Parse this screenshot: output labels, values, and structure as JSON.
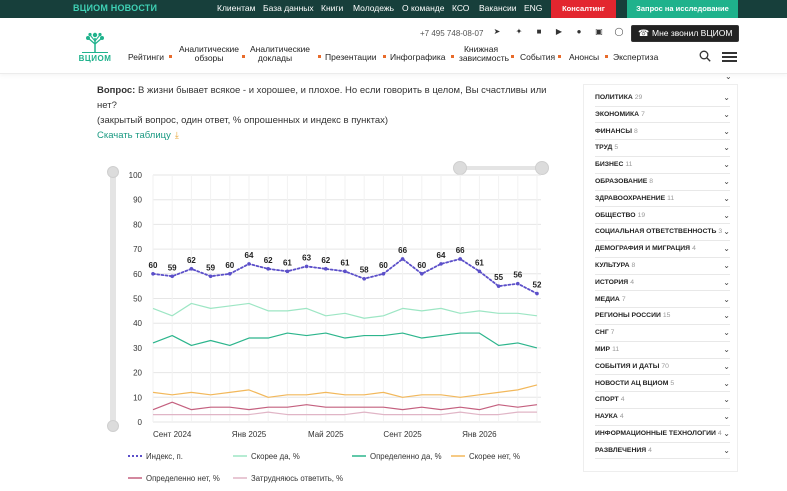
{
  "topbar": {
    "brand": "ВЦИОМ НОВОСТИ",
    "links": [
      "Клиентам",
      "База данных",
      "Книги",
      "Молодежь",
      "О команде",
      "КСО",
      "Вакансии",
      "ENG"
    ],
    "consulting": "Консалтинг",
    "request": "Запрос на исследование"
  },
  "header": {
    "logo_text": "ВЦИОМ",
    "phone": "+7 495 748-08-07",
    "callme": "Мне звонил ВЦИОМ",
    "nav": [
      {
        "label": "Рейтинги"
      },
      {
        "label": "Аналитические обзоры"
      },
      {
        "label": "Аналитические доклады"
      },
      {
        "label": "Презентации"
      },
      {
        "label": "Инфографика"
      },
      {
        "label": "Книжная зависимость"
      },
      {
        "label": "События"
      },
      {
        "label": "Анонсы"
      },
      {
        "label": "Экспертиза"
      }
    ]
  },
  "question": {
    "label": "Вопрос:",
    "text": " В жизни бывает всякое - и хорошее, и плохое. Но если говорить в целом, Вы счастливы  или нет?",
    "note": "(закрытый вопрос, один ответ, % опрошенных и индекс в пунктах)"
  },
  "download": "Скачать таблицу",
  "chart_data": {
    "type": "line",
    "ylim": [
      0,
      100
    ],
    "yticks": [
      0,
      10,
      20,
      30,
      40,
      50,
      60,
      70,
      80,
      90,
      100
    ],
    "xticks": [
      "Сент 2024",
      "Янв 2025",
      "Май 2025",
      "Сент 2025",
      "Янв 2026"
    ],
    "grid": true,
    "legend": "bottom",
    "series": [
      {
        "name": "Индекс, п.",
        "color": "#5b4fc9",
        "dotted": true,
        "labeled": true,
        "values": [
          60,
          59,
          62,
          59,
          60,
          64,
          62,
          61,
          63,
          62,
          61,
          58,
          60,
          66,
          60,
          64,
          66,
          61,
          55,
          56,
          52
        ]
      },
      {
        "name": "Скорее да, %",
        "color": "#9de6c4",
        "values": [
          46,
          43,
          48,
          46,
          47,
          48,
          45,
          45,
          46,
          43,
          44,
          42,
          43,
          46,
          45,
          46,
          44,
          45,
          44,
          44,
          43
        ]
      },
      {
        "name": "Определенно да, %",
        "color": "#2cb58c",
        "values": [
          32,
          35,
          31,
          33,
          31,
          34,
          34,
          36,
          35,
          36,
          34,
          35,
          35,
          36,
          34,
          35,
          36,
          36,
          31,
          32,
          30
        ]
      },
      {
        "name": "Скорее нет, %",
        "color": "#f2b85b",
        "values": [
          12,
          11,
          12,
          11,
          12,
          13,
          10,
          11,
          11,
          12,
          11,
          11,
          12,
          10,
          11,
          11,
          10,
          11,
          12,
          13,
          15
        ]
      },
      {
        "name": "Определенно нет, %",
        "color": "#c4607f",
        "values": [
          5,
          8,
          5,
          6,
          6,
          5,
          6,
          6,
          7,
          6,
          6,
          6,
          6,
          5,
          6,
          5,
          6,
          5,
          7,
          6,
          7
        ]
      },
      {
        "name": "Затрудняюсь ответить, %",
        "color": "#e0b5c6",
        "values": [
          3,
          3,
          3,
          3,
          3,
          3,
          4,
          3,
          3,
          3,
          3,
          4,
          3,
          3,
          3,
          3,
          4,
          3,
          3,
          4,
          4
        ]
      }
    ]
  },
  "sidebar": {
    "categories": [
      {
        "name": "Политика",
        "count": "29"
      },
      {
        "name": "Экономика",
        "count": "7"
      },
      {
        "name": "Финансы",
        "count": "8"
      },
      {
        "name": "Труд",
        "count": "5"
      },
      {
        "name": "Бизнес",
        "count": "11"
      },
      {
        "name": "Образование",
        "count": "8"
      },
      {
        "name": "Здравоохранение",
        "count": "11"
      },
      {
        "name": "Общество",
        "count": "19"
      },
      {
        "name": "Социальная ответственность",
        "count": "3"
      },
      {
        "name": "Демография и миграция",
        "count": "4"
      },
      {
        "name": "Культура",
        "count": "8"
      },
      {
        "name": "История",
        "count": "4"
      },
      {
        "name": "Медиа",
        "count": "7"
      },
      {
        "name": "Регионы России",
        "count": "15"
      },
      {
        "name": "СНГ",
        "count": "7"
      },
      {
        "name": "Мир",
        "count": "11"
      },
      {
        "name": "События и даты",
        "count": "70"
      },
      {
        "name": "Новости АЦ ВЦИОМ",
        "count": "5"
      },
      {
        "name": "Спорт",
        "count": "4"
      },
      {
        "name": "Наука",
        "count": "4"
      },
      {
        "name": "Информационные технологии",
        "count": "4"
      },
      {
        "name": "Развлечения",
        "count": "4"
      }
    ]
  }
}
